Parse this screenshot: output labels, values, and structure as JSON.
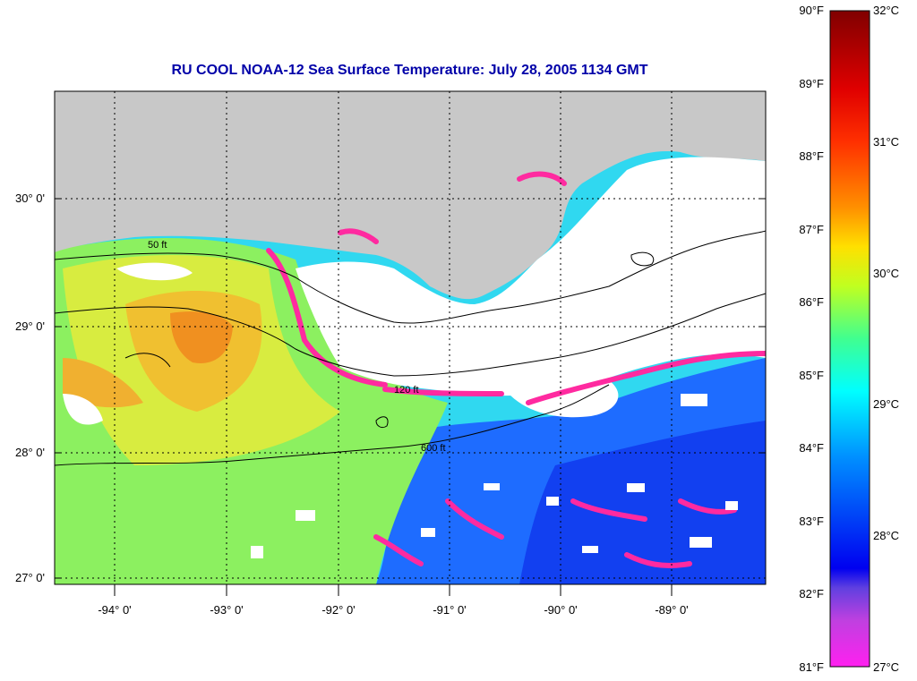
{
  "title": "RU COOL  NOAA-12  Sea Surface Temperature:  July 28, 2005 1134 GMT",
  "lat_labels": [
    "30° 0'",
    "29° 0'",
    "28° 0'",
    "27° 0'"
  ],
  "lon_labels": [
    "-94° 0'",
    "-93° 0'",
    "-92° 0'",
    "-91° 0'",
    "-90° 0'",
    "-89° 0'"
  ],
  "contour_labels": [
    "50 ft",
    "120 ft",
    "600 ft"
  ],
  "colorbar": {
    "fahrenheit_labels": [
      "90°F",
      "89°F",
      "88°F",
      "87°F",
      "86°F",
      "85°F",
      "84°F",
      "83°F",
      "82°F",
      "81°F"
    ],
    "celsius_labels": [
      "32°C",
      "31°C",
      "30°C",
      "29°C",
      "28°C",
      "27°C"
    ],
    "colors": [
      "#8b0000",
      "#ff0000",
      "#ff8000",
      "#ffff00",
      "#80ff40",
      "#00ffff",
      "#0080ff",
      "#0000ff",
      "#8040ff",
      "#ff00ff"
    ]
  },
  "palette": {
    "land": "#c8c8c8",
    "cloud": "#ffffff",
    "cold_edge": "#ff2aa0",
    "warm": "#f0a020",
    "yellow": "#e6f040",
    "green": "#8cff6a",
    "cyan": "#2ce6f0",
    "blue": "#2060ff"
  }
}
